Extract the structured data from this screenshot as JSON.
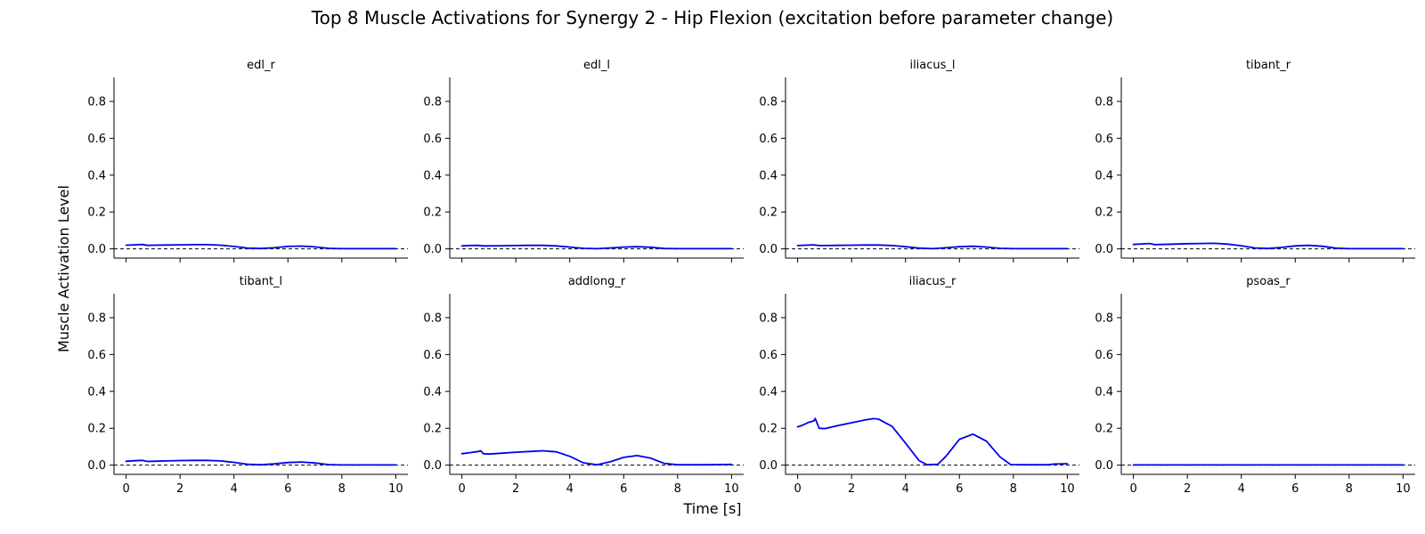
{
  "figure": {
    "title": "Top 8 Muscle Activations for Synergy 2 - Hip Flexion (excitation before parameter change)",
    "xlabel": "Time [s]",
    "ylabel": "Muscle Activation Level"
  },
  "colors": {
    "line": "#0000ee",
    "axes": "#000000",
    "reference": "#000000"
  },
  "chart_data": {
    "type": "line",
    "layout": "2x4 subplots, shared y-axis, shared x-axis",
    "xlim": [
      -0.45,
      10.45
    ],
    "ylim": [
      -0.05,
      0.93
    ],
    "x_ticks": [
      0,
      2,
      4,
      6,
      8,
      10
    ],
    "y_ticks": [
      0.0,
      0.2,
      0.4,
      0.6,
      0.8
    ],
    "x_tick_labels": [
      "0",
      "2",
      "4",
      "6",
      "8",
      "10"
    ],
    "y_tick_labels": [
      "0.0",
      "0.2",
      "0.4",
      "0.6",
      "0.8"
    ],
    "reference_line": {
      "y": 0,
      "style": "dashed"
    },
    "grid": false,
    "panels": [
      {
        "name": "edl_r",
        "x": [
          0,
          0.3,
          0.6,
          0.8,
          1,
          1.5,
          2,
          2.5,
          3,
          3.5,
          4,
          4.5,
          5,
          5.5,
          6,
          6.5,
          7,
          7.5,
          8,
          8.5,
          9,
          9.5,
          10
        ],
        "y": [
          0.02,
          0.022,
          0.024,
          0.019,
          0.02,
          0.021,
          0.022,
          0.023,
          0.023,
          0.02,
          0.013,
          0.004,
          0.002,
          0.006,
          0.013,
          0.015,
          0.011,
          0.003,
          0.001,
          0.001,
          0.001,
          0.001,
          0.001
        ]
      },
      {
        "name": "edl_l",
        "x": [
          0,
          0.3,
          0.6,
          0.8,
          1,
          1.5,
          2,
          2.5,
          3,
          3.5,
          4,
          4.5,
          5,
          5.5,
          6,
          6.5,
          7,
          7.5,
          8,
          8.5,
          9,
          9.5,
          10
        ],
        "y": [
          0.016,
          0.018,
          0.019,
          0.016,
          0.016,
          0.017,
          0.018,
          0.019,
          0.019,
          0.016,
          0.01,
          0.003,
          0.001,
          0.005,
          0.01,
          0.012,
          0.009,
          0.002,
          0.001,
          0.001,
          0.001,
          0.001,
          0.001
        ]
      },
      {
        "name": "iliacus_l",
        "x": [
          0,
          0.3,
          0.6,
          0.8,
          1,
          1.5,
          2,
          2.5,
          3,
          3.5,
          4,
          4.5,
          5,
          5.5,
          6,
          6.5,
          7,
          7.5,
          8,
          8.5,
          9,
          9.5,
          10
        ],
        "y": [
          0.018,
          0.02,
          0.022,
          0.018,
          0.018,
          0.019,
          0.02,
          0.021,
          0.021,
          0.018,
          0.012,
          0.004,
          0.001,
          0.006,
          0.012,
          0.014,
          0.01,
          0.003,
          0.001,
          0.001,
          0.001,
          0.001,
          0.001
        ]
      },
      {
        "name": "tibant_r",
        "x": [
          0,
          0.3,
          0.6,
          0.8,
          1,
          1.5,
          2,
          2.5,
          3,
          3.5,
          4,
          4.5,
          5,
          5.5,
          6,
          6.5,
          7,
          7.5,
          8,
          8.5,
          9,
          9.5,
          10
        ],
        "y": [
          0.024,
          0.027,
          0.029,
          0.023,
          0.024,
          0.026,
          0.028,
          0.029,
          0.03,
          0.026,
          0.017,
          0.005,
          0.002,
          0.008,
          0.016,
          0.019,
          0.014,
          0.004,
          0.001,
          0.001,
          0.001,
          0.001,
          0.001
        ]
      },
      {
        "name": "tibant_l",
        "x": [
          0,
          0.3,
          0.6,
          0.8,
          1,
          1.5,
          2,
          2.5,
          3,
          3.5,
          4,
          4.5,
          5,
          5.5,
          6,
          6.5,
          7,
          7.5,
          8,
          8.5,
          9,
          9.5,
          10
        ],
        "y": [
          0.021,
          0.024,
          0.026,
          0.02,
          0.021,
          0.023,
          0.025,
          0.026,
          0.026,
          0.023,
          0.015,
          0.005,
          0.002,
          0.007,
          0.014,
          0.017,
          0.012,
          0.003,
          0.001,
          0.001,
          0.001,
          0.001,
          0.001
        ]
      },
      {
        "name": "addlong_r",
        "x": [
          0,
          0.3,
          0.6,
          0.7,
          0.8,
          1,
          1.5,
          2,
          2.5,
          3,
          3.5,
          4,
          4.5,
          5,
          5.5,
          6,
          6.5,
          7,
          7.5,
          8,
          8.5,
          9,
          9.5,
          10
        ],
        "y": [
          0.062,
          0.068,
          0.074,
          0.078,
          0.062,
          0.06,
          0.065,
          0.07,
          0.074,
          0.078,
          0.072,
          0.048,
          0.013,
          0.002,
          0.018,
          0.042,
          0.052,
          0.038,
          0.01,
          0.002,
          0.002,
          0.002,
          0.003,
          0.004
        ]
      },
      {
        "name": "iliacus_r",
        "x": [
          0,
          0.2,
          0.4,
          0.6,
          0.65,
          0.8,
          1,
          1.2,
          1.5,
          2,
          2.5,
          2.8,
          3,
          3.5,
          4,
          4.5,
          4.8,
          5.2,
          5.5,
          6,
          6.5,
          7,
          7.5,
          7.9,
          8.5,
          9,
          9.3,
          9.5,
          10
        ],
        "y": [
          0.208,
          0.218,
          0.232,
          0.24,
          0.253,
          0.2,
          0.198,
          0.205,
          0.215,
          0.23,
          0.245,
          0.252,
          0.25,
          0.21,
          0.12,
          0.025,
          0.002,
          0.005,
          0.048,
          0.14,
          0.168,
          0.13,
          0.045,
          0.003,
          0.002,
          0.002,
          0.002,
          0.006,
          0.008
        ]
      },
      {
        "name": "psoas_r",
        "x": [
          0,
          2,
          4,
          6,
          8,
          10
        ],
        "y": [
          0.001,
          0.001,
          0.001,
          0.001,
          0.001,
          0.001
        ]
      }
    ]
  }
}
